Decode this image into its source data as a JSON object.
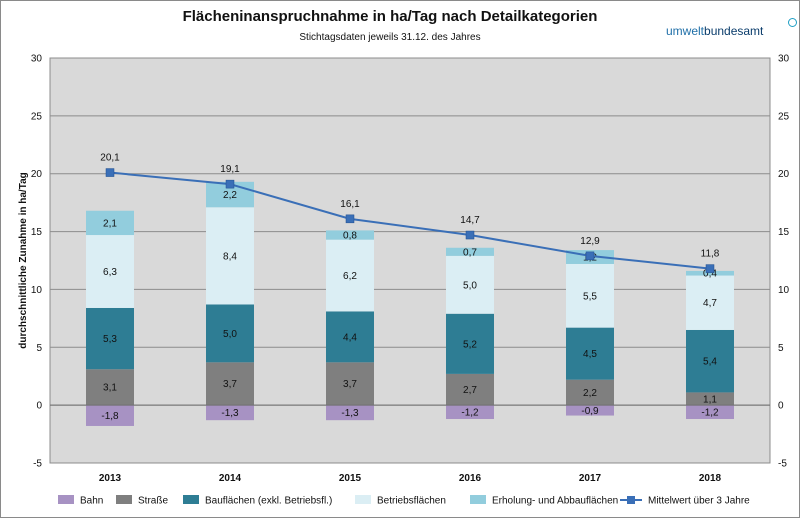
{
  "header": {
    "title": "Flächeninanspruchnahme  in ha/Tag  nach Detailkategorien",
    "subtitle": "Stichtagsdaten jeweils 31.12. des Jahres",
    "logo_part1": "umwelt",
    "logo_part2": "bundesamt"
  },
  "chart_data": {
    "type": "bar",
    "stacked": true,
    "categories": [
      "2013",
      "2014",
      "2015",
      "2016",
      "2017",
      "2018"
    ],
    "ylabel": "durchschnittliche  Zunahme  in ha/Tag",
    "ylim": [
      -5,
      30
    ],
    "yticks": [
      -5,
      0,
      5,
      10,
      15,
      20,
      25,
      30
    ],
    "grid": true,
    "legend_position": "bottom",
    "series": [
      {
        "name": "Bahn",
        "color": "#a792c3",
        "values": [
          -1.8,
          -1.3,
          -1.3,
          -1.2,
          -0.9,
          -1.2
        ],
        "labels": [
          "-1,8",
          "-1,3",
          "-1,3",
          "-1,2",
          "-0,9",
          "-1,2"
        ]
      },
      {
        "name": "Straße",
        "color": "#7f7f7f",
        "values": [
          3.1,
          3.7,
          3.7,
          2.7,
          2.2,
          1.1
        ],
        "labels": [
          "3,1",
          "3,7",
          "3,7",
          "2,7",
          "2,2",
          "1,1"
        ]
      },
      {
        "name": "Bauflächen (exkl. Betriebsfl.)",
        "color": "#2e7d94",
        "values": [
          5.3,
          5.0,
          4.4,
          5.2,
          4.5,
          5.4
        ],
        "labels": [
          "5,3",
          "5,0",
          "4,4",
          "5,2",
          "4,5",
          "5,4"
        ]
      },
      {
        "name": "Betriebsflächen",
        "color": "#dbeef4",
        "values": [
          6.3,
          8.4,
          6.2,
          5.0,
          5.5,
          4.7
        ],
        "labels": [
          "6,3",
          "8,4",
          "6,2",
          "5,0",
          "5,5",
          "4,7"
        ]
      },
      {
        "name": "Erholung- und Abbauflächen",
        "color": "#92cddd",
        "values": [
          2.1,
          2.2,
          0.8,
          0.7,
          1.2,
          0.4
        ],
        "labels": [
          "2,1",
          "2,2",
          "0,8",
          "0,7",
          "1,2",
          "0,4"
        ]
      }
    ],
    "line_series": {
      "name": "Mittelwert über 3 Jahre",
      "color": "#3a6fb7",
      "values": [
        20.1,
        19.1,
        16.1,
        14.7,
        12.9,
        11.8
      ],
      "labels": [
        "20,1",
        "19,1",
        "16,1",
        "14,7",
        "12,9",
        "11,8"
      ]
    }
  }
}
